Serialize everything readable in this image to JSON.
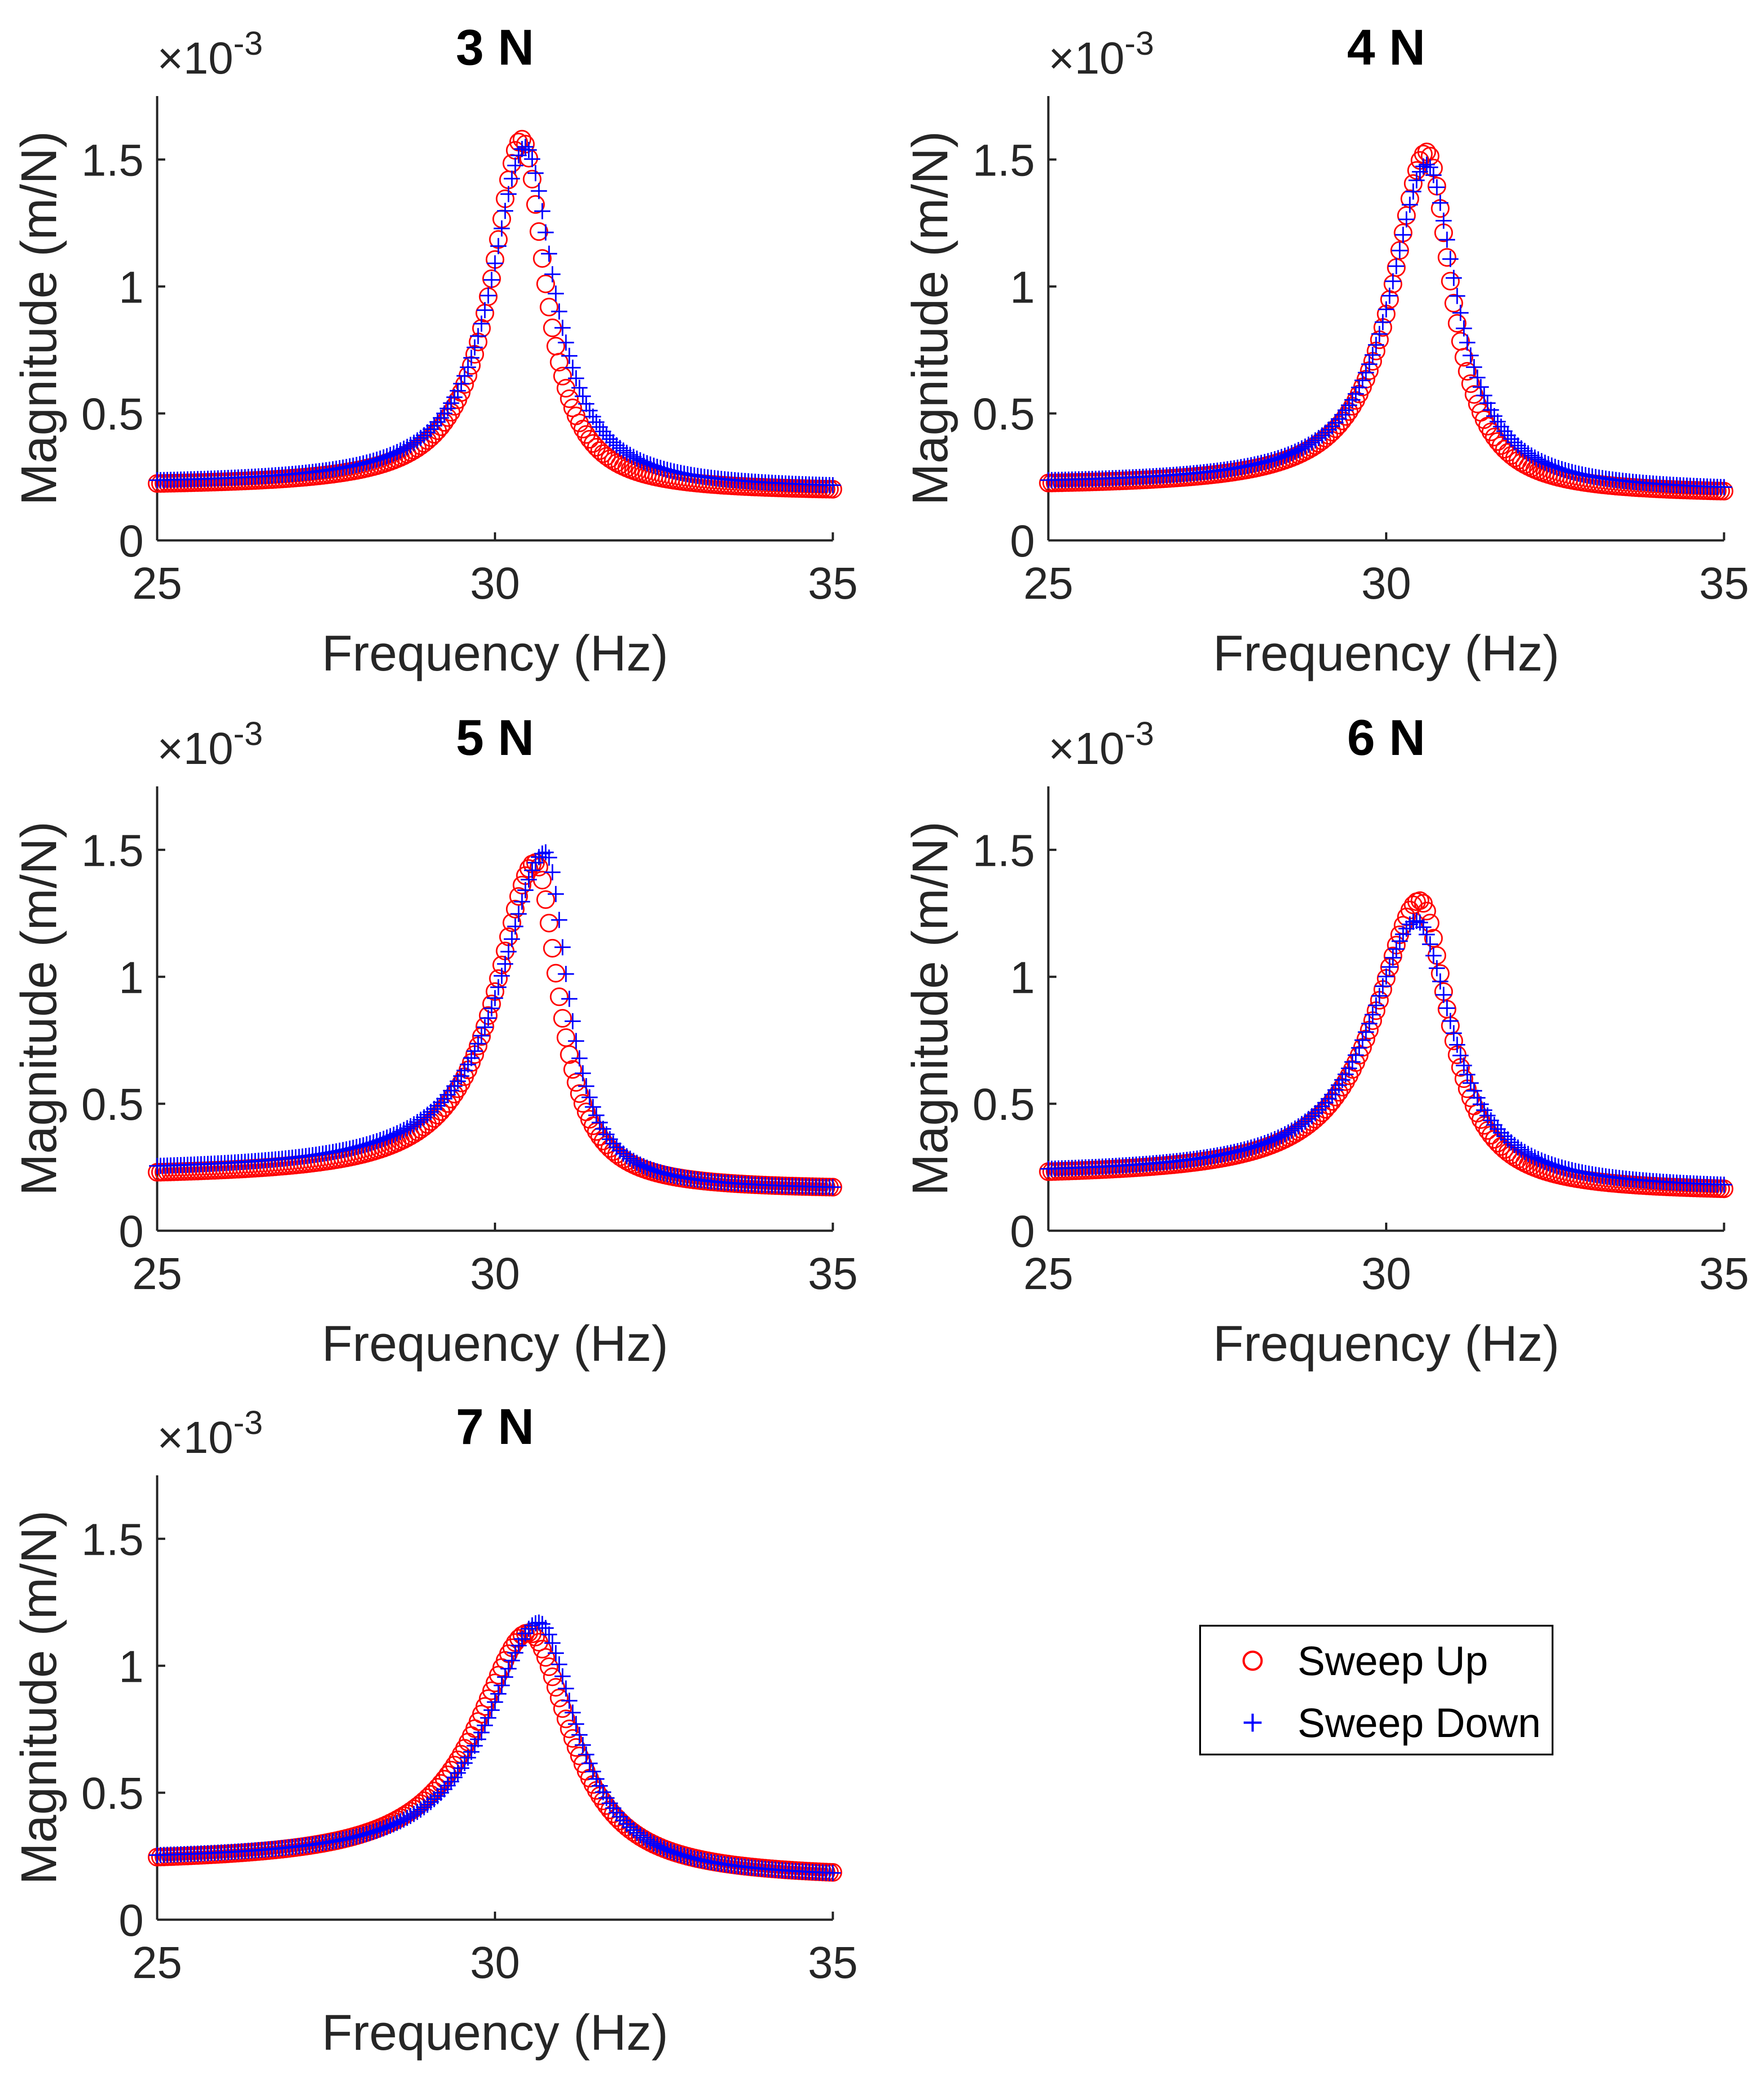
{
  "chart_data": [
    {
      "type": "scatter",
      "title": "3 N",
      "xlabel": "Frequency (Hz)",
      "ylabel": "Magnitude (m/N)",
      "y_scale_label": "×10",
      "y_scale_exponent": "-3",
      "xlim": [
        25,
        35
      ],
      "ylim": [
        0,
        1.75
      ],
      "xticks": [
        25,
        30,
        35
      ],
      "yticks": [
        0,
        0.5,
        1,
        1.5
      ],
      "ytick_labels": [
        "0",
        "0.5",
        "1",
        "1.5"
      ],
      "series": [
        {
          "name": "Sweep Up",
          "peak_x": 30.4,
          "peak_y": 1.58,
          "w_left": 0.55,
          "w_right": 0.42,
          "base_left": 0.21,
          "base_right": 0.19
        },
        {
          "name": "Sweep Down",
          "peak_x": 30.45,
          "peak_y": 1.55,
          "w_left": 0.62,
          "w_right": 0.52,
          "base_left": 0.22,
          "base_right": 0.2
        }
      ]
    },
    {
      "type": "scatter",
      "title": "4 N",
      "xlabel": "Frequency (Hz)",
      "ylabel": "Magnitude (m/N)",
      "y_scale_label": "×10",
      "y_scale_exponent": "-3",
      "xlim": [
        25,
        35
      ],
      "ylim": [
        0,
        1.75
      ],
      "xticks": [
        25,
        30,
        35
      ],
      "yticks": [
        0,
        0.5,
        1,
        1.5
      ],
      "ytick_labels": [
        "0",
        "0.5",
        "1",
        "1.5"
      ],
      "series": [
        {
          "name": "Sweep Up",
          "peak_x": 30.6,
          "peak_y": 1.53,
          "w_left": 0.62,
          "w_right": 0.45,
          "base_left": 0.21,
          "base_right": 0.18
        },
        {
          "name": "Sweep Down",
          "peak_x": 30.6,
          "peak_y": 1.48,
          "w_left": 0.66,
          "w_right": 0.55,
          "base_left": 0.22,
          "base_right": 0.19
        }
      ]
    },
    {
      "type": "scatter",
      "title": "5 N",
      "xlabel": "Frequency (Hz)",
      "ylabel": "Magnitude (m/N)",
      "y_scale_label": "×10",
      "y_scale_exponent": "-3",
      "xlim": [
        25,
        35
      ],
      "ylim": [
        0,
        1.75
      ],
      "xticks": [
        25,
        30,
        35
      ],
      "yticks": [
        0,
        0.5,
        1,
        1.5
      ],
      "ytick_labels": [
        "0",
        "0.5",
        "1",
        "1.5"
      ],
      "series": [
        {
          "name": "Sweep Up",
          "peak_x": 30.6,
          "peak_y": 1.45,
          "w_left": 0.72,
          "w_right": 0.42,
          "base_left": 0.21,
          "base_right": 0.16
        },
        {
          "name": "Sweep Down",
          "peak_x": 30.75,
          "peak_y": 1.49,
          "w_left": 0.82,
          "w_right": 0.4,
          "base_left": 0.23,
          "base_right": 0.16
        }
      ]
    },
    {
      "type": "scatter",
      "title": "6 N",
      "xlabel": "Frequency (Hz)",
      "ylabel": "Magnitude (m/N)",
      "y_scale_label": "×10",
      "y_scale_exponent": "-3",
      "xlim": [
        25,
        35
      ],
      "ylim": [
        0,
        1.75
      ],
      "xticks": [
        25,
        30,
        35
      ],
      "yticks": [
        0,
        0.5,
        1,
        1.5
      ],
      "ytick_labels": [
        "0",
        "0.5",
        "1",
        "1.5"
      ],
      "series": [
        {
          "name": "Sweep Up",
          "peak_x": 30.5,
          "peak_y": 1.3,
          "w_left": 0.8,
          "w_right": 0.52,
          "base_left": 0.21,
          "base_right": 0.15
        },
        {
          "name": "Sweep Down",
          "peak_x": 30.45,
          "peak_y": 1.22,
          "w_left": 0.85,
          "w_right": 0.65,
          "base_left": 0.22,
          "base_right": 0.16
        }
      ]
    },
    {
      "type": "scatter",
      "title": "7 N",
      "xlabel": "Frequency (Hz)",
      "ylabel": "Magnitude (m/N)",
      "y_scale_label": "×10",
      "y_scale_exponent": "-3",
      "xlim": [
        25,
        35
      ],
      "ylim": [
        0,
        1.75
      ],
      "xticks": [
        25,
        30,
        35
      ],
      "yticks": [
        0,
        0.5,
        1,
        1.5
      ],
      "ytick_labels": [
        "0",
        "0.5",
        "1",
        "1.5"
      ],
      "series": [
        {
          "name": "Sweep Up",
          "peak_x": 30.5,
          "peak_y": 1.13,
          "w_left": 0.95,
          "w_right": 0.75,
          "base_left": 0.22,
          "base_right": 0.16
        },
        {
          "name": "Sweep Down",
          "peak_x": 30.65,
          "peak_y": 1.17,
          "w_left": 0.92,
          "w_right": 0.68,
          "base_left": 0.23,
          "base_right": 0.16
        }
      ]
    }
  ],
  "legend": {
    "entries": [
      {
        "label": "Sweep Up",
        "marker": "circle",
        "color": "#ff0000"
      },
      {
        "label": "Sweep Down",
        "marker": "plus",
        "color": "#0000ff"
      }
    ]
  },
  "colors": {
    "sweep_up": "#ff0000",
    "sweep_down": "#0000ff",
    "axis": "#262626"
  }
}
